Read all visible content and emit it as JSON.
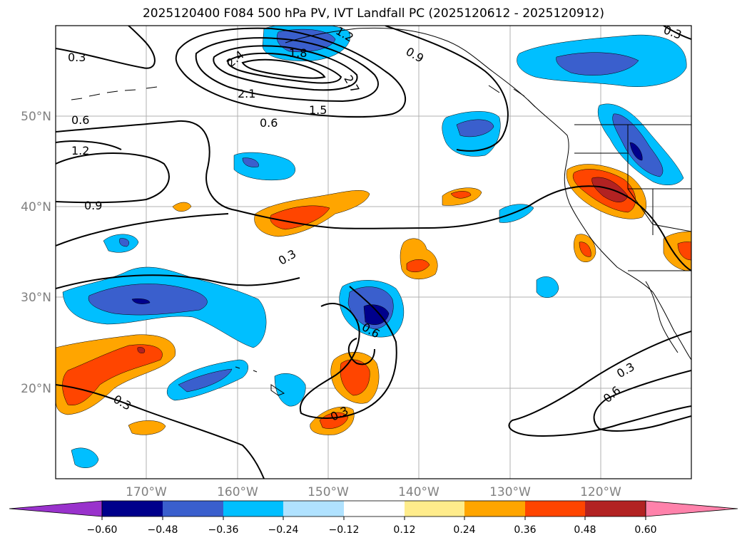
{
  "title": "2025120400 F084 500 hPa PV, IVT Landfall PC (2025120612 - 2025120912)",
  "map": {
    "lon_ticks": [
      "170°W",
      "160°W",
      "150°W",
      "140°W",
      "130°W",
      "120°W"
    ],
    "lat_ticks": [
      "50°N",
      "40°N",
      "30°N",
      "20°N"
    ],
    "extent": {
      "lon_min": -180,
      "lon_max": -110,
      "lat_min": 10,
      "lat_max": 60
    },
    "contour_labels": [
      "0.3",
      "0.6",
      "1.2",
      "0.9",
      "2.7",
      "1.8",
      "2.1",
      "2.4",
      "1.5",
      "0.9",
      "0.6",
      "0.3",
      "0.6",
      "0.3",
      "0.3",
      "0.6",
      "0.3",
      "0.3",
      "1.2"
    ]
  },
  "colorbar": {
    "ticks": [
      "−0.60",
      "−0.48",
      "−0.36",
      "−0.24",
      "−0.12",
      "0.12",
      "0.24",
      "0.36",
      "0.48",
      "0.60"
    ],
    "colors": [
      "#9932CC",
      "#00008B",
      "#3A5FCD",
      "#00BFFF",
      "#B0E2FF",
      "#FFFFFF",
      "#FFEC8B",
      "#FFA500",
      "#FF4500",
      "#B22222",
      "#FF82AB"
    ]
  }
}
